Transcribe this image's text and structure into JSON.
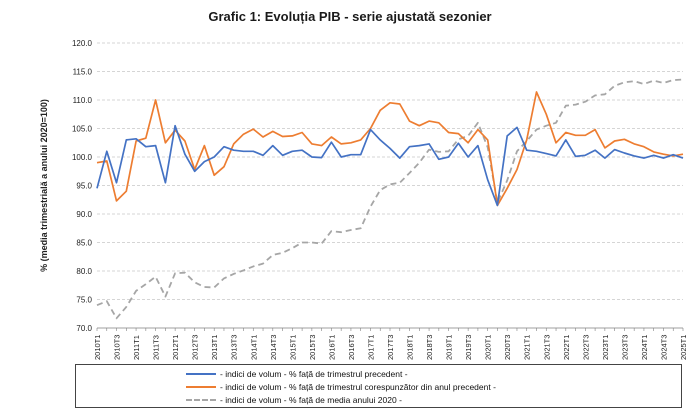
{
  "title": "Grafic 1: Evoluția PIB - serie ajustată sezonier",
  "chart_data": {
    "type": "line",
    "ylabel": "% (media trimestrială a anului 2020=100)",
    "ylim": [
      70,
      120
    ],
    "yticks": [
      "70.0",
      "75.0",
      "80.0",
      "85.0",
      "90.0",
      "95.0",
      "100.0",
      "105.0",
      "110.0",
      "115.0",
      "120.0"
    ],
    "grid": true,
    "legend_position": "bottom",
    "tick_labels": [
      "2010T1",
      "2010T3",
      "2011T1",
      "2011T3",
      "2012T1",
      "2012T3",
      "2013T1",
      "2013T3",
      "2014T1",
      "2014T3",
      "2015T1",
      "2015T3",
      "2016T1",
      "2016T3",
      "2017T1",
      "2017T3",
      "2018T1",
      "2018T3",
      "2019T1",
      "2019T3",
      "2020T1",
      "2020T3",
      "2021T1",
      "2021T3",
      "2022T1",
      "2022T3",
      "2023T1",
      "2023T3",
      "2024T1",
      "2024T3",
      "2025T1"
    ],
    "series": [
      {
        "name": "- indici de volum - % față de trimestrul precedent -",
        "color": "#4472C4",
        "dash": "solid",
        "values": [
          94.5,
          101.0,
          95.5,
          103.0,
          103.2,
          101.8,
          102.0,
          95.5,
          105.5,
          100.5,
          97.5,
          99.2,
          100.0,
          101.8,
          101.2,
          101.0,
          101.0,
          100.3,
          102.0,
          100.3,
          101.0,
          101.2,
          100.0,
          99.9,
          102.6,
          100.0,
          100.4,
          100.4,
          104.8,
          103.0,
          101.5,
          99.8,
          101.8,
          102.0,
          102.3,
          99.6,
          100.0,
          102.4,
          100.0,
          102.0,
          96.0,
          91.5,
          103.7,
          105.2,
          101.2,
          101.0,
          100.6,
          100.2,
          103.0,
          100.1,
          100.3,
          101.2,
          99.8,
          101.3,
          100.7,
          100.2,
          99.8,
          100.3,
          99.8,
          100.4,
          99.8
        ]
      },
      {
        "name": "- indici de volum - % față de trimestrul corespunzător din anul precedent -",
        "color": "#ED7D31",
        "dash": "solid",
        "values": [
          99.0,
          99.3,
          92.3,
          94.0,
          102.8,
          103.3,
          110.0,
          102.5,
          104.7,
          102.8,
          97.8,
          102.0,
          96.8,
          98.3,
          102.3,
          104.0,
          104.9,
          103.5,
          104.5,
          103.6,
          103.7,
          104.3,
          102.3,
          102.0,
          103.5,
          102.3,
          102.5,
          103.0,
          105.0,
          108.2,
          109.5,
          109.3,
          106.3,
          105.5,
          106.3,
          106.0,
          104.3,
          104.1,
          102.5,
          104.8,
          103.0,
          91.5,
          94.5,
          97.8,
          103.0,
          111.4,
          107.5,
          102.5,
          104.3,
          103.8,
          103.8,
          104.8,
          101.6,
          102.8,
          103.1,
          102.3,
          101.8,
          100.9,
          100.5,
          100.2,
          100.5
        ]
      },
      {
        "name": "- indici de volum - % față de media anului 2020 -",
        "color": "#A6A6A6",
        "dash": "dashed",
        "values": [
          74.0,
          74.7,
          71.7,
          73.7,
          76.5,
          77.7,
          79.0,
          75.5,
          79.6,
          79.7,
          78.0,
          77.2,
          77.1,
          78.7,
          79.5,
          80.1,
          80.8,
          81.3,
          82.8,
          83.2,
          84.0,
          85.0,
          85.0,
          84.8,
          87.0,
          86.8,
          87.2,
          87.5,
          91.3,
          94.2,
          95.2,
          95.5,
          97.2,
          99.0,
          101.3,
          100.9,
          101.0,
          103.1,
          103.7,
          106.0,
          101.7,
          92.0,
          95.9,
          101.0,
          102.8,
          104.8,
          105.5,
          106.0,
          109.0,
          109.2,
          109.7,
          110.8,
          111.0,
          112.5,
          113.1,
          113.3,
          112.8,
          113.4,
          113.0,
          113.5,
          113.6
        ]
      }
    ]
  }
}
